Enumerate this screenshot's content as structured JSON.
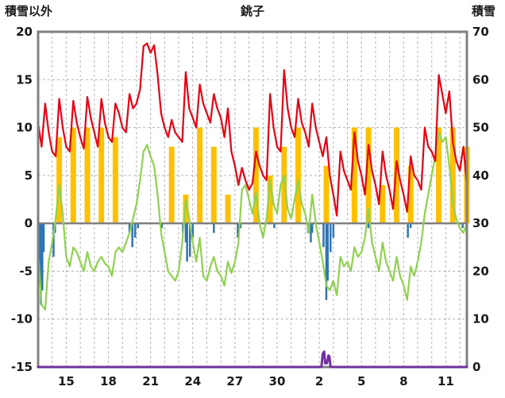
{
  "header": {
    "left_axis_title": "積雪以外",
    "station_title": "銚子",
    "right_axis_title": "積雪"
  },
  "chart_data": {
    "type": "line",
    "title": "銚子",
    "left_axis": {
      "label": "積雪以外",
      "min": -15,
      "max": 20,
      "ticks": [
        20,
        15,
        10,
        5,
        0,
        -5,
        -10,
        -15
      ]
    },
    "right_axis": {
      "label": "積雪",
      "min": 0,
      "max": 70,
      "ticks": [
        70,
        60,
        50,
        40,
        30,
        20,
        10,
        0
      ]
    },
    "x_axis": {
      "min": 13,
      "max": 43.5,
      "day_grid_start": 14,
      "day_grid_end": 43,
      "tick_positions": [
        15,
        18,
        21,
        24,
        27,
        30,
        33,
        36,
        39,
        42
      ],
      "tick_labels": [
        "15",
        "18",
        "21",
        "24",
        "27",
        "30",
        "2",
        "5",
        "8",
        "11"
      ]
    },
    "grid": true,
    "legend": "none",
    "colors": {
      "red_line": "#e60012",
      "green_line": "#8fd14f",
      "sunshine_bar": "#ffc000",
      "precip_bar": "#2e75b6",
      "snow_line": "#7030a0",
      "grid": "#b3b3b3",
      "axis": "#808080",
      "text": "#1a1a1a"
    },
    "series": [
      {
        "id": "red-line",
        "type": "line",
        "axis": "left",
        "color_key": "red_line",
        "width": 2.2,
        "x_start": 13,
        "x_step": 0.25,
        "values": [
          10.5,
          8.0,
          12.5,
          9.5,
          7.5,
          7.0,
          13.0,
          10.0,
          8.0,
          7.5,
          12.8,
          10.5,
          9.0,
          7.8,
          13.2,
          11.0,
          9.5,
          8.0,
          13.0,
          10.5,
          9.0,
          8.5,
          12.5,
          11.5,
          10.0,
          9.5,
          13.5,
          12.0,
          12.5,
          14.0,
          18.5,
          18.8,
          17.8,
          18.6,
          15.5,
          11.5,
          10.0,
          9.0,
          10.8,
          9.5,
          9.0,
          8.5,
          15.8,
          12.0,
          11.0,
          10.0,
          14.5,
          12.5,
          11.5,
          10.5,
          13.5,
          12.0,
          11.0,
          9.0,
          12.0,
          7.5,
          6.0,
          4.0,
          5.8,
          4.5,
          3.5,
          4.2,
          7.5,
          6.0,
          5.0,
          4.5,
          13.5,
          10.0,
          8.0,
          7.5,
          16.0,
          12.0,
          10.0,
          9.0,
          13.0,
          10.5,
          9.5,
          8.0,
          12.5,
          10.0,
          8.5,
          7.0,
          9.0,
          5.0,
          3.0,
          0.8,
          7.5,
          5.5,
          4.5,
          3.5,
          9.5,
          6.5,
          5.0,
          3.0,
          8.2,
          5.5,
          4.0,
          2.0,
          7.5,
          5.0,
          3.5,
          1.5,
          6.5,
          4.5,
          3.0,
          1.2,
          7.0,
          5.0,
          4.5,
          3.5,
          10.0,
          8.0,
          7.5,
          6.5,
          15.5,
          13.5,
          11.5,
          13.8,
          8.5,
          6.5,
          5.5,
          8.0,
          4.0
        ]
      },
      {
        "id": "green-line",
        "type": "line",
        "axis": "left",
        "color_key": "green_line",
        "width": 2.2,
        "x_start": 13,
        "x_step": 0.25,
        "values": [
          -3.0,
          -8.5,
          -9.0,
          -4.0,
          -2.0,
          0.5,
          4.0,
          1.0,
          -3.5,
          -4.5,
          -2.5,
          -3.0,
          -4.0,
          -5.0,
          -3.0,
          -4.5,
          -5.0,
          -4.0,
          -3.5,
          -4.2,
          -4.5,
          -5.5,
          -3.0,
          -2.5,
          -3.0,
          -2.0,
          -1.0,
          0.5,
          2.0,
          4.5,
          7.5,
          8.2,
          7.0,
          6.0,
          3.0,
          -1.0,
          -3.0,
          -5.0,
          -5.5,
          -6.0,
          -5.0,
          -2.0,
          2.5,
          0.5,
          -2.0,
          -4.0,
          -1.5,
          -5.5,
          -6.0,
          -4.5,
          -3.5,
          -5.0,
          -5.5,
          -6.5,
          -4.0,
          -5.2,
          -4.0,
          -2.0,
          3.5,
          4.0,
          2.5,
          1.0,
          3.2,
          0.0,
          -1.5,
          0.5,
          4.5,
          2.0,
          1.0,
          4.0,
          5.0,
          1.5,
          0.5,
          2.5,
          4.5,
          2.0,
          1.0,
          -1.0,
          3.0,
          0.0,
          -2.0,
          -4.0,
          -6.5,
          -7.0,
          -6.0,
          -7.5,
          -3.5,
          -4.5,
          -4.0,
          -5.0,
          -2.5,
          -3.5,
          -3.0,
          -1.5,
          1.5,
          -2.0,
          -3.5,
          -5.0,
          -2.0,
          -4.0,
          -5.0,
          -6.0,
          -3.5,
          -5.5,
          -6.5,
          -8.0,
          -4.5,
          -5.5,
          -4.0,
          -2.0,
          1.0,
          3.0,
          5.0,
          7.0,
          9.5,
          8.5,
          9.0,
          6.0,
          2.0,
          0.5,
          -0.5,
          -1.0,
          0.0
        ]
      },
      {
        "id": "sunshine-bars",
        "type": "bar-up",
        "axis": "left",
        "color_key": "sunshine_bar",
        "x_start": 13,
        "x_step": 1,
        "bar_center_offset": 0.5,
        "values": [
          0,
          9,
          10,
          10,
          10,
          9,
          0,
          0,
          0,
          8,
          3,
          10,
          8,
          3,
          0,
          10,
          5,
          8,
          10,
          0,
          6,
          0,
          10,
          10,
          4,
          10,
          6,
          0,
          10,
          10,
          8
        ]
      },
      {
        "id": "precip-bars",
        "type": "bar-down",
        "axis": "left",
        "color_key": "precip_bar",
        "points": [
          [
            13.1,
            -5.0
          ],
          [
            13.2,
            -8.5
          ],
          [
            13.3,
            -7.0
          ],
          [
            13.4,
            -3.0
          ],
          [
            14.1,
            -3.5
          ],
          [
            14.2,
            -1.0
          ],
          [
            19.5,
            -1.0
          ],
          [
            19.7,
            -2.5
          ],
          [
            19.9,
            -1.5
          ],
          [
            20.1,
            -0.5
          ],
          [
            21.8,
            -0.5
          ],
          [
            23.3,
            -1.0
          ],
          [
            23.5,
            -2.0
          ],
          [
            23.6,
            -4.0
          ],
          [
            23.8,
            -3.5
          ],
          [
            24.0,
            -1.5
          ],
          [
            25.5,
            -1.0
          ],
          [
            27.2,
            -1.5
          ],
          [
            27.4,
            -0.5
          ],
          [
            29.8,
            -0.5
          ],
          [
            32.2,
            -1.0
          ],
          [
            32.4,
            -2.0
          ],
          [
            32.5,
            -1.0
          ],
          [
            33.3,
            -2.5
          ],
          [
            33.5,
            -8.0
          ],
          [
            33.6,
            -6.0
          ],
          [
            33.8,
            -3.0
          ],
          [
            34.0,
            -1.5
          ],
          [
            36.5,
            -0.5
          ],
          [
            39.3,
            -1.5
          ],
          [
            39.5,
            -0.5
          ],
          [
            43.2,
            -0.5
          ]
        ]
      },
      {
        "id": "snow-line",
        "type": "line",
        "axis": "right",
        "color_key": "snow_line",
        "width": 3,
        "points": [
          [
            13.0,
            0
          ],
          [
            33.15,
            0
          ],
          [
            33.25,
            2.8
          ],
          [
            33.35,
            3.2
          ],
          [
            33.42,
            0.8
          ],
          [
            33.55,
            0.8
          ],
          [
            33.65,
            2.4
          ],
          [
            33.72,
            2.2
          ],
          [
            33.8,
            0
          ],
          [
            43.5,
            0
          ]
        ]
      }
    ]
  }
}
